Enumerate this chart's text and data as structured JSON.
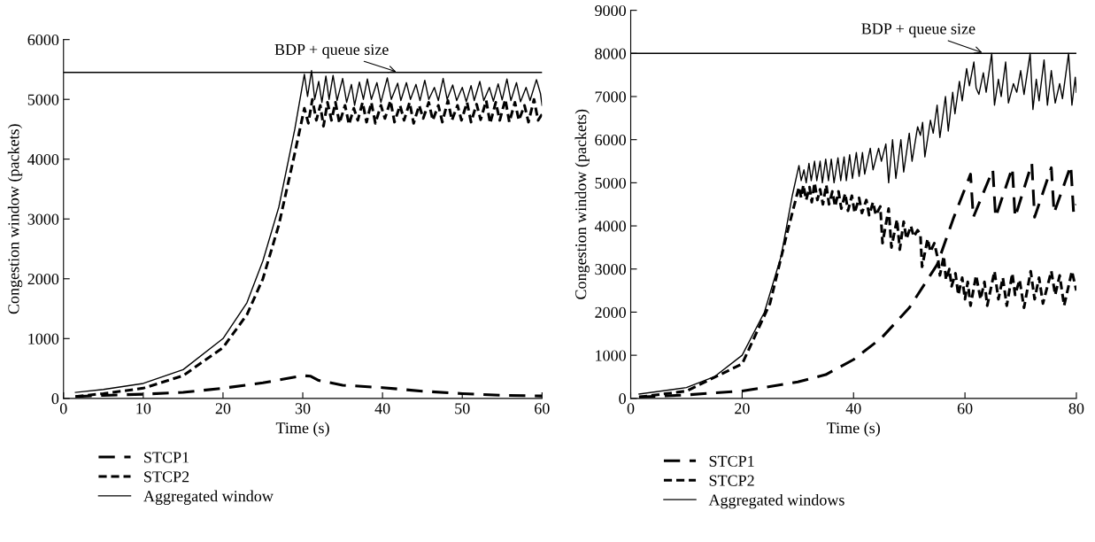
{
  "chart_data": [
    {
      "type": "line",
      "xlabel": "Time (s)",
      "ylabel": "Congestion window (packets)",
      "xlim": [
        0,
        60
      ],
      "xticks": [
        0,
        10,
        20,
        30,
        40,
        50,
        60
      ],
      "ylim": [
        0,
        6000
      ],
      "yticks": [
        0,
        1000,
        2000,
        3000,
        4000,
        5000,
        6000
      ],
      "grid": false,
      "legend": "bottom",
      "marker": "none",
      "ref_lines": [
        {
          "axis": "y",
          "value": 5450,
          "color": "#000000",
          "line_style": "solid"
        }
      ],
      "annotations": [
        {
          "text": "BDP + queue size",
          "x": 42,
          "y": 5450
        }
      ],
      "series": [
        {
          "name": "STCP1",
          "color": "#000000",
          "line_style": "dashed",
          "x": [
            1.5,
            5,
            10,
            15,
            20,
            25,
            30,
            31,
            32,
            35,
            40,
            45,
            50,
            55,
            60
          ],
          "values": [
            30,
            50,
            70,
            100,
            170,
            260,
            380,
            370,
            300,
            220,
            180,
            120,
            80,
            50,
            40
          ]
        },
        {
          "name": "STCP2",
          "color": "#000000",
          "line_style": "dotted",
          "x": [
            1.5,
            5,
            10,
            15,
            20,
            23,
            25,
            27,
            29,
            30.2,
            30.7,
            31.2,
            31.7,
            32.2,
            32.6,
            33.1,
            33.6,
            34.1,
            34.6,
            35.3,
            35.8,
            36.4,
            36.9,
            37.5,
            38,
            38.6,
            39.1,
            39.8,
            40.3,
            41,
            41.5,
            42.2,
            42.7,
            43.4,
            43.9,
            44.6,
            45.1,
            45.8,
            46.3,
            47,
            47.5,
            48.2,
            48.7,
            49.4,
            49.9,
            50.6,
            51.1,
            51.8,
            52.3,
            53,
            53.5,
            54.2,
            54.7,
            55.4,
            55.9,
            56.6,
            57.1,
            57.8,
            58.3,
            59,
            59.5,
            60
          ],
          "values": [
            30,
            80,
            170,
            380,
            850,
            1400,
            2000,
            2900,
            4100,
            4850,
            4600,
            5000,
            4650,
            4900,
            4550,
            4950,
            4650,
            4950,
            4600,
            4900,
            4580,
            4850,
            4650,
            4950,
            4620,
            4950,
            4600,
            4900,
            4680,
            4980,
            4620,
            4900,
            4650,
            4950,
            4600,
            4900,
            4680,
            4950,
            4650,
            4900,
            4620,
            4980,
            4650,
            4900,
            4650,
            4950,
            4620,
            4920,
            4660,
            4980,
            4600,
            4950,
            4650,
            5000,
            4620,
            4950,
            4650,
            4900,
            4620,
            5000,
            4650,
            4750
          ]
        },
        {
          "name": "Aggregated window",
          "color": "#000000",
          "line_style": "solid",
          "x": [
            1.5,
            5,
            10,
            15,
            20,
            23,
            25,
            27,
            29,
            30.2,
            30.6,
            31.1,
            31.5,
            32,
            32.4,
            32.9,
            33.3,
            33.8,
            34.3,
            35,
            35.5,
            36.1,
            36.5,
            37.1,
            37.6,
            38.1,
            38.6,
            39.3,
            39.8,
            40.6,
            41.1,
            41.9,
            42.3,
            43,
            43.5,
            44.2,
            44.7,
            45.3,
            45.8,
            46.5,
            47,
            47.6,
            48.1,
            48.8,
            49.3,
            50,
            50.5,
            51.1,
            51.5,
            52.2,
            52.7,
            53.4,
            53.9,
            54.5,
            55,
            55.6,
            56.1,
            56.8,
            57.3,
            58,
            58.5,
            59.3,
            59.8,
            60
          ],
          "values": [
            100,
            150,
            250,
            480,
            1000,
            1600,
            2300,
            3200,
            4500,
            5420,
            5050,
            5480,
            5000,
            5300,
            4950,
            5390,
            5000,
            5400,
            4980,
            5350,
            4950,
            5250,
            4900,
            5290,
            5000,
            5340,
            5000,
            5280,
            4950,
            5360,
            5000,
            5270,
            4980,
            5280,
            5000,
            5250,
            4980,
            5320,
            5000,
            5200,
            4980,
            5350,
            5000,
            5240,
            4980,
            5200,
            4960,
            5230,
            4980,
            5300,
            4980,
            5200,
            4970,
            5260,
            4990,
            5340,
            4980,
            5280,
            4960,
            5200,
            4980,
            5330,
            5100,
            4900
          ]
        }
      ]
    },
    {
      "type": "line",
      "xlabel": "Time (s)",
      "ylabel": "Congestion window (packets)",
      "xlim": [
        0,
        80
      ],
      "xticks": [
        0,
        20,
        40,
        60,
        80
      ],
      "ylim": [
        0,
        9000
      ],
      "yticks": [
        0,
        1000,
        2000,
        3000,
        4000,
        5000,
        6000,
        7000,
        8000,
        9000
      ],
      "grid": false,
      "legend": "bottom",
      "marker": "none",
      "ref_lines": [
        {
          "axis": "y",
          "value": 8000,
          "color": "#000000",
          "line_style": "solid"
        }
      ],
      "annotations": [
        {
          "text": "BDP + queue size",
          "x": 63.5,
          "y": 8000
        }
      ],
      "series": [
        {
          "name": "STCP1",
          "color": "#000000",
          "line_style": "dashed",
          "x": [
            1.5,
            10,
            20,
            30,
            35,
            40,
            45,
            50,
            55,
            58,
            61,
            61.5,
            65,
            65.5,
            68.5,
            69,
            72,
            72.5,
            75.5,
            76,
            79,
            79.5,
            80
          ],
          "values": [
            30,
            80,
            170,
            380,
            550,
            900,
            1400,
            2100,
            3100,
            4200,
            5200,
            4200,
            5300,
            4200,
            5350,
            4200,
            5450,
            4200,
            5350,
            4300,
            5400,
            4300,
            4500
          ]
        },
        {
          "name": "STCP2",
          "color": "#000000",
          "line_style": "dotted",
          "x": [
            1.5,
            10,
            20,
            25,
            28,
            30.2,
            30.6,
            31,
            31.5,
            32.1,
            32.5,
            33,
            33.5,
            34,
            34.5,
            35.1,
            35.6,
            36.2,
            36.7,
            37.3,
            37.8,
            38.5,
            39,
            39.7,
            40.2,
            41,
            41.5,
            42.3,
            42.8,
            43.5,
            44,
            44.8,
            45.2,
            46.3,
            46.8,
            47.8,
            48.3,
            49,
            49.5,
            50.3,
            50.8,
            51.5,
            52,
            52.3,
            53.3,
            53.8,
            54.5,
            55.2,
            55.5,
            56.2,
            56.6,
            57.2,
            57.6,
            58.3,
            58.8,
            59.5,
            60,
            60.5,
            61,
            62,
            62.8,
            63.5,
            64,
            65.3,
            66,
            66.8,
            67.5,
            68.5,
            69,
            69.8,
            70.6,
            71.8,
            72.5,
            73.3,
            74,
            75.5,
            76.2,
            77,
            77.8,
            79.2,
            80
          ],
          "values": [
            30,
            170,
            800,
            2200,
            3800,
            4900,
            4650,
            4950,
            4600,
            4900,
            4550,
            5000,
            4600,
            4850,
            4500,
            4950,
            4500,
            4800,
            4450,
            4800,
            4400,
            4750,
            4350,
            4700,
            4300,
            4650,
            4300,
            4600,
            4250,
            4550,
            4250,
            4450,
            3600,
            4400,
            3500,
            4150,
            3450,
            4100,
            3700,
            4000,
            3750,
            3900,
            3800,
            3050,
            3700,
            3400,
            3600,
            3200,
            2850,
            3300,
            2750,
            3000,
            2600,
            2900,
            2400,
            2800,
            2300,
            2700,
            2150,
            2850,
            2300,
            2700,
            2150,
            2950,
            2300,
            2800,
            2150,
            2900,
            2400,
            2750,
            2100,
            2950,
            2300,
            2800,
            2200,
            2950,
            2400,
            2850,
            2150,
            2950,
            2500
          ]
        },
        {
          "name": "Aggregated windows",
          "color": "#000000",
          "line_style": "solid",
          "x": [
            1.5,
            10,
            15,
            20,
            24,
            27,
            29,
            30.2,
            30.6,
            31.1,
            31.5,
            32,
            32.4,
            33,
            33.4,
            34,
            34.4,
            35,
            35.5,
            36,
            36.5,
            37.2,
            37.7,
            38.3,
            38.7,
            39.3,
            39.8,
            40.5,
            41,
            41.6,
            42,
            43,
            43.5,
            44.5,
            45,
            45.8,
            46.3,
            47,
            47.6,
            48.5,
            49,
            50,
            50.5,
            51.5,
            52,
            52.4,
            52.8,
            53.8,
            54.3,
            55,
            55.5,
            56.5,
            57,
            57.8,
            58.2,
            59,
            59.5,
            60.3,
            60.8,
            61.6,
            62,
            62.5,
            63.3,
            63.8,
            64.8,
            65.3,
            66,
            66.5,
            67.3,
            67.8,
            68.7,
            69.3,
            70,
            70.6,
            71.7,
            72.2,
            72.8,
            73.3,
            74.2,
            74.8,
            75.5,
            76.2,
            77,
            77.5,
            78.6,
            79.2,
            79.8,
            80
          ],
          "values": [
            100,
            250,
            500,
            1000,
            2000,
            3300,
            4700,
            5400,
            5050,
            5300,
            5000,
            5450,
            5050,
            5500,
            5050,
            5500,
            5000,
            5550,
            5050,
            5550,
            5000,
            5580,
            5050,
            5600,
            5050,
            5650,
            5100,
            5700,
            5150,
            5700,
            5200,
            5800,
            5300,
            5800,
            5500,
            5900,
            5000,
            6000,
            5100,
            6000,
            5250,
            6150,
            5500,
            6300,
            6100,
            6400,
            5600,
            6450,
            6150,
            6800,
            6050,
            7000,
            6200,
            7100,
            6600,
            7350,
            6900,
            7650,
            7250,
            7800,
            7200,
            7050,
            7550,
            7100,
            8000,
            6800,
            7400,
            7000,
            7800,
            6850,
            7300,
            7100,
            7600,
            7050,
            8000,
            6700,
            7400,
            6900,
            7850,
            6800,
            7600,
            6850,
            7300,
            6950,
            8000,
            6800,
            7450,
            7100
          ]
        }
      ]
    }
  ]
}
